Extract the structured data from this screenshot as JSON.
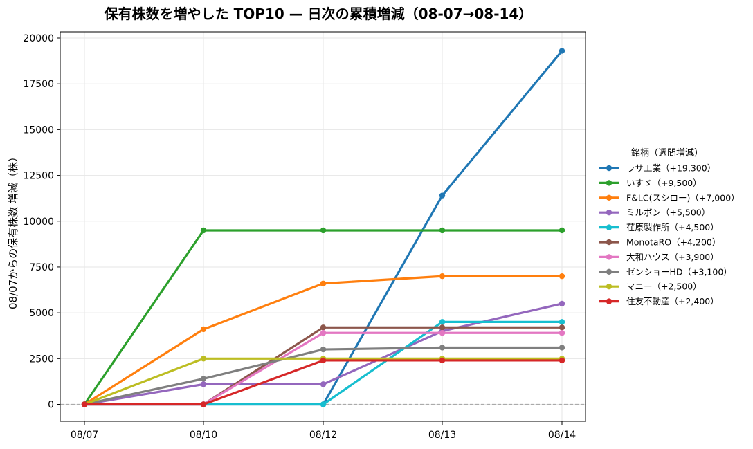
{
  "chart_data": {
    "type": "line",
    "title": "保有株数を増やした TOP10 — 日次の累積増減（08-07→08-14）",
    "xlabel": "",
    "ylabel": "08/07からの保有株数 増減（株）",
    "categories": [
      "08/07",
      "08/10",
      "08/12",
      "08/13",
      "08/14"
    ],
    "ylim": [
      -1000,
      20300
    ],
    "yticks": [
      0,
      2500,
      5000,
      7500,
      10000,
      12500,
      15000,
      17500,
      20000
    ],
    "grid": true,
    "baseline": 0,
    "legend_title": "銘柄（週間増減）",
    "legend_position": "right",
    "series": [
      {
        "name": "ラサ工業（+19,300）",
        "color": "#1f77b4",
        "values": [
          0,
          0,
          0,
          11400,
          19300
        ]
      },
      {
        "name": "いすゞ（+9,500）",
        "color": "#2ca02c",
        "values": [
          0,
          9500,
          9500,
          9500,
          9500
        ]
      },
      {
        "name": "F&LC(スシロー)（+7,000）",
        "color": "#ff7f0e",
        "values": [
          0,
          4100,
          6600,
          7000,
          7000
        ]
      },
      {
        "name": "ミルボン（+5,500）",
        "color": "#9467bd",
        "values": [
          0,
          1100,
          1100,
          4000,
          5500
        ]
      },
      {
        "name": "荏原製作所（+4,500）",
        "color": "#17becf",
        "values": [
          0,
          0,
          0,
          4500,
          4500
        ]
      },
      {
        "name": "MonotaRO（+4,200）",
        "color": "#8c564b",
        "values": [
          0,
          0,
          4200,
          4200,
          4200
        ]
      },
      {
        "name": "大和ハウス（+3,900）",
        "color": "#e377c2",
        "values": [
          0,
          0,
          3900,
          3900,
          3900
        ]
      },
      {
        "name": "ゼンショーHD（+3,100）",
        "color": "#7f7f7f",
        "values": [
          0,
          1400,
          3000,
          3100,
          3100
        ]
      },
      {
        "name": "マニー（+2,500）",
        "color": "#bcbd22",
        "values": [
          0,
          2500,
          2500,
          2500,
          2500
        ]
      },
      {
        "name": "住友不動産（+2,400）",
        "color": "#d62728",
        "values": [
          0,
          0,
          2400,
          2400,
          2400
        ]
      }
    ]
  }
}
